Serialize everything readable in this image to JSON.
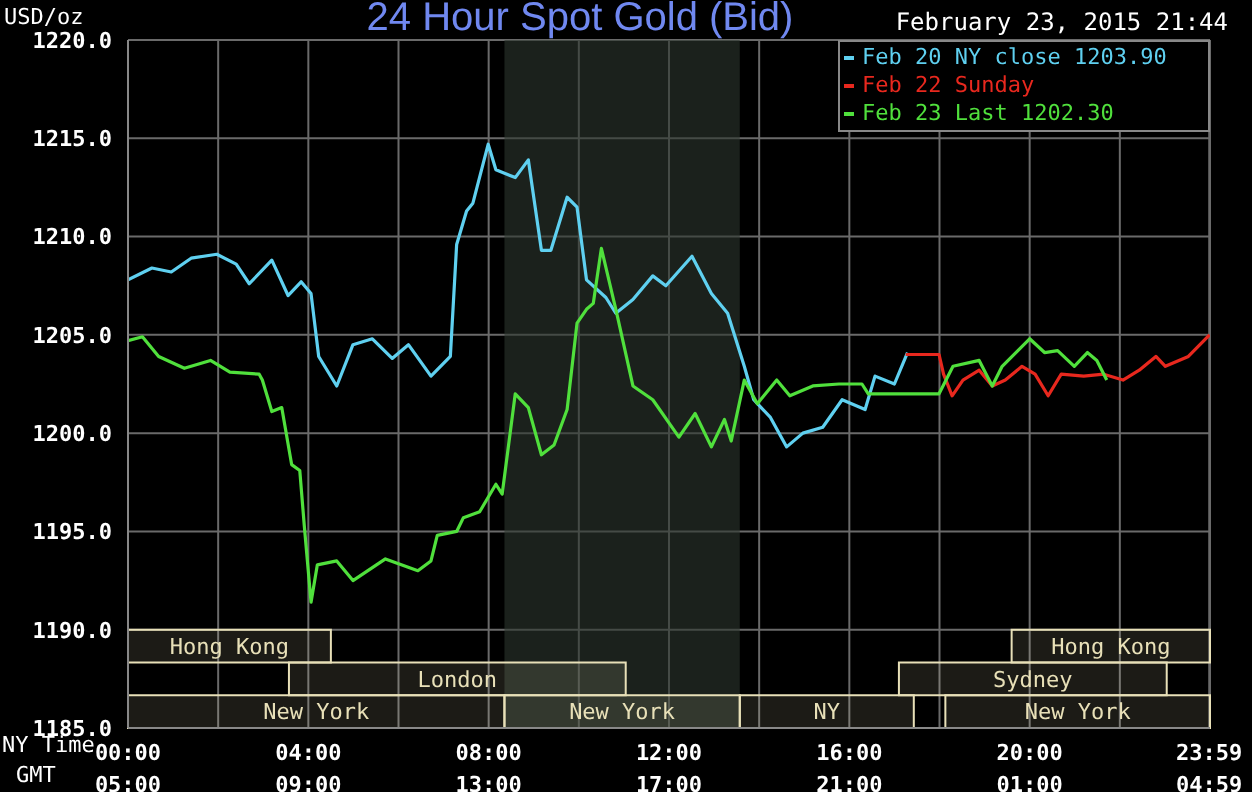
{
  "chart_data": {
    "type": "line",
    "title": "24 Hour Spot Gold (Bid)",
    "subtitle": "February 23, 2015 21:44",
    "ylabel": "USD/oz",
    "xlabel": "NY Time",
    "x2label": "GMT",
    "xlim": [
      0,
      24
    ],
    "x2lim": [
      "2015-02-23T05:00",
      "2015-02-24T05:00"
    ],
    "xticks": [
      {
        "value": 0,
        "label": "00:00"
      },
      {
        "value": 2,
        "label": null
      },
      {
        "value": 4,
        "label": "04:00"
      },
      {
        "value": 6,
        "label": null
      },
      {
        "value": 8,
        "label": "08:00"
      },
      {
        "value": 10,
        "label": null
      },
      {
        "value": 12,
        "label": "12:00"
      },
      {
        "value": 14,
        "label": null
      },
      {
        "value": 16,
        "label": "16:00"
      },
      {
        "value": 18,
        "label": null
      },
      {
        "value": 20,
        "label": "20:00"
      },
      {
        "value": 22,
        "label": null
      },
      {
        "value": 23.983,
        "label": "23:59"
      }
    ],
    "x2ticks": [
      {
        "value": "2015-02-23T05:00",
        "label": "05:00"
      },
      {
        "value": "2015-02-23T09:00",
        "label": "09:00"
      },
      {
        "value": "2015-02-23T13:00",
        "label": "13:00"
      },
      {
        "value": "2015-02-23T17:00",
        "label": "17:00"
      },
      {
        "value": "2015-02-23T21:00",
        "label": "21:00"
      },
      {
        "value": "2015-02-24T01:00",
        "label": "01:00"
      },
      {
        "value": "2015-02-24T04:59",
        "label": "04:59"
      }
    ],
    "ylim": [
      1185,
      1220
    ],
    "yticks": [
      {
        "value": 1185,
        "label": "1185.0"
      },
      {
        "value": 1190,
        "label": "1190.0"
      },
      {
        "value": 1195,
        "label": "1195.0"
      },
      {
        "value": 1200,
        "label": "1200.0"
      },
      {
        "value": 1205,
        "label": "1205.0"
      },
      {
        "value": 1210,
        "label": "1210.0"
      },
      {
        "value": 1215,
        "label": "1215.0"
      },
      {
        "value": 1220,
        "label": "1220.0"
      }
    ],
    "grid": true,
    "legend": "top right",
    "marker": "none",
    "line_style": "solid",
    "series": [
      {
        "name": "Feb 20 NY close 1203.90",
        "color": "#5fd0f0",
        "x": [
          0,
          0.53,
          0.96,
          1.4,
          1.97,
          2.4,
          2.69,
          3.19,
          3.55,
          3.84,
          4.06,
          4.23,
          4.63,
          4.99,
          5.42,
          5.86,
          6.22,
          6.72,
          7.15,
          7.29,
          7.51,
          7.65,
          7.99,
          8.16,
          8.59,
          8.88,
          9.17,
          9.38,
          9.74,
          9.96,
          10.17,
          10.6,
          10.82,
          11.2,
          11.64,
          11.93,
          12.51,
          12.94,
          13.3,
          13.67,
          13.88,
          14.25,
          14.61,
          14.97,
          15.41,
          15.84,
          16.35,
          16.57,
          17.0,
          17.29
        ],
        "values": [
          1207.8,
          1208.4,
          1208.2,
          1208.9,
          1209.1,
          1208.6,
          1207.6,
          1208.8,
          1207.0,
          1207.7,
          1207.1,
          1203.9,
          1202.4,
          1204.5,
          1204.8,
          1203.8,
          1204.5,
          1202.9,
          1203.9,
          1209.6,
          1211.3,
          1211.7,
          1214.7,
          1213.4,
          1213.0,
          1213.9,
          1209.3,
          1209.3,
          1212.0,
          1211.5,
          1207.8,
          1206.9,
          1206.1,
          1206.8,
          1208.0,
          1207.5,
          1209.0,
          1207.1,
          1206.1,
          1203.4,
          1201.7,
          1200.8,
          1199.3,
          1200.0,
          1200.3,
          1201.7,
          1201.2,
          1202.9,
          1202.5,
          1204.1
        ]
      },
      {
        "name": "Feb 22 Sunday",
        "color": "#e8281e",
        "x": [
          17.25,
          17.99,
          18.09,
          18.28,
          18.52,
          18.88,
          19.17,
          19.46,
          19.83,
          20.12,
          20.41,
          20.7,
          21.2,
          21.64,
          22.07,
          22.43,
          22.8,
          23.01,
          23.52,
          23.99
        ],
        "values": [
          1204.0,
          1204.0,
          1203.0,
          1201.9,
          1202.7,
          1203.2,
          1202.4,
          1202.7,
          1203.4,
          1203.0,
          1201.9,
          1203.0,
          1202.9,
          1203.0,
          1202.7,
          1203.2,
          1203.9,
          1203.4,
          1203.9,
          1205.0
        ]
      },
      {
        "name": "Feb 23 Last 1202.30",
        "color": "#50e03c",
        "x": [
          0,
          0.32,
          0.68,
          1.25,
          1.83,
          2.26,
          2.91,
          2.98,
          3.19,
          3.41,
          3.63,
          3.81,
          3.91,
          4.06,
          4.2,
          4.63,
          4.99,
          5.71,
          6.43,
          6.72,
          6.86,
          7.29,
          7.44,
          7.8,
          8.16,
          8.3,
          8.59,
          8.88,
          9.17,
          9.45,
          9.74,
          9.96,
          10.17,
          10.32,
          10.5,
          10.84,
          11.2,
          11.64,
          12.22,
          12.58,
          12.94,
          13.23,
          13.38,
          13.67,
          13.96,
          14.39,
          14.68,
          15.19,
          15.77,
          16.28,
          16.42,
          17.14,
          17.99,
          18.3,
          18.88,
          19.17,
          19.39,
          20.0,
          20.33,
          20.62,
          20.99,
          21.28,
          21.49,
          21.71
        ],
        "values": [
          1204.7,
          1204.9,
          1203.9,
          1203.3,
          1203.7,
          1203.1,
          1203.0,
          1202.7,
          1201.1,
          1201.3,
          1198.4,
          1198.1,
          1195.3,
          1191.4,
          1193.3,
          1193.5,
          1192.5,
          1193.6,
          1193.0,
          1193.5,
          1194.8,
          1195.0,
          1195.7,
          1196.0,
          1197.4,
          1196.9,
          1202.0,
          1201.3,
          1198.9,
          1199.4,
          1201.2,
          1205.6,
          1206.3,
          1206.6,
          1209.4,
          1206.1,
          1202.4,
          1201.7,
          1199.8,
          1201.0,
          1199.3,
          1200.7,
          1199.6,
          1202.7,
          1201.5,
          1202.7,
          1201.9,
          1202.4,
          1202.5,
          1202.5,
          1202.0,
          1202.0,
          1202.0,
          1203.4,
          1203.7,
          1202.4,
          1203.4,
          1204.8,
          1204.1,
          1204.2,
          1203.4,
          1204.1,
          1203.7,
          1202.7
        ]
      }
    ],
    "bands": [
      {
        "axis": "x",
        "from": 8.35,
        "to": 13.57,
        "color": "#2d372e"
      },
      {
        "axis": "x",
        "from": 0,
        "to": 8.35,
        "label": "New York",
        "color": "#e8e0b8"
      },
      {
        "axis": "x",
        "from": 8.35,
        "to": 13.57,
        "label": "New York",
        "color": "#e8e0b8"
      },
      {
        "axis": "x",
        "from": 13.57,
        "to": 17.43,
        "label": "NY",
        "color": "#e8e0b8"
      },
      {
        "axis": "x",
        "from": 18.13,
        "to": 24,
        "label": "New York",
        "color": "#e8e0b8"
      },
      {
        "axis": "x",
        "from": 3.57,
        "to": 11.04,
        "label": "London",
        "color": "#e8e0b8"
      },
      {
        "axis": "x",
        "from": 17.1,
        "to": 23.04,
        "label": "Sydney",
        "color": "#e8e0b8"
      },
      {
        "axis": "x",
        "from": 0,
        "to": 4.5,
        "label": "Hong Kong",
        "color": "#e8e0b8"
      },
      {
        "axis": "x",
        "from": 19.6,
        "to": 24,
        "label": "Hong Kong",
        "color": "#e8e0b8"
      }
    ]
  }
}
